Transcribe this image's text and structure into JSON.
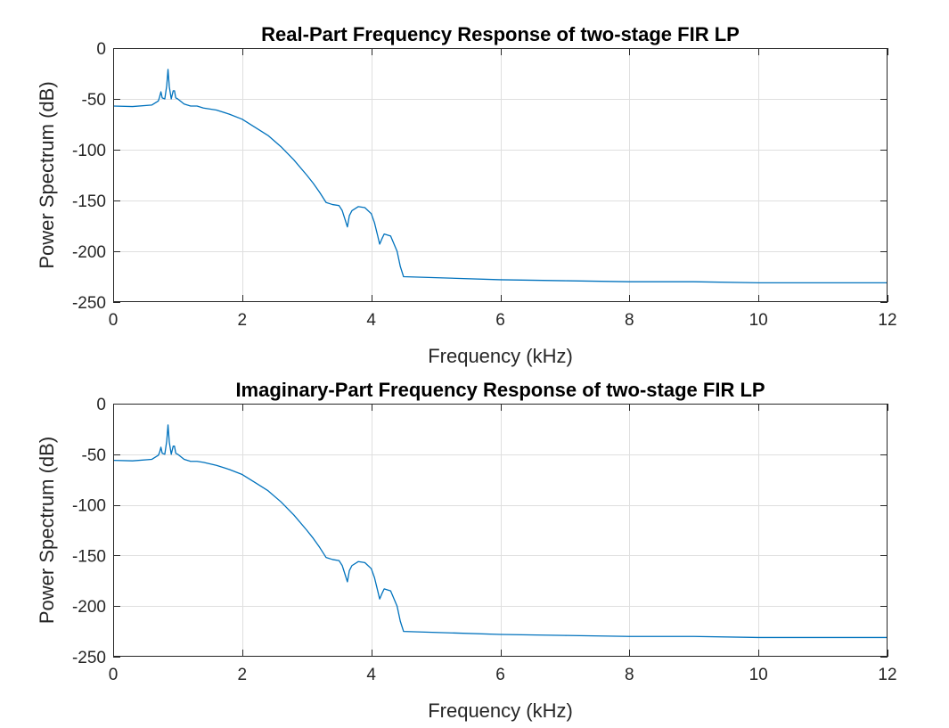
{
  "chart_data": [
    {
      "type": "line",
      "title": "Real-Part Frequency Response of two-stage FIR LP",
      "xlabel": "Frequency (kHz)",
      "ylabel": "Power Spectrum (dB)",
      "xlim": [
        0,
        12
      ],
      "ylim": [
        -250,
        0
      ],
      "xticks": [
        0,
        2,
        4,
        6,
        8,
        10,
        12
      ],
      "yticks": [
        -250,
        -200,
        -150,
        -100,
        -50,
        0
      ],
      "grid": true,
      "series": [
        {
          "color": "#0072BD",
          "x": [
            0,
            0.3,
            0.6,
            0.7,
            0.72,
            0.74,
            0.76,
            0.8,
            0.83,
            0.85,
            0.87,
            0.9,
            0.93,
            0.95,
            0.97,
            1.0,
            1.1,
            1.2,
            1.3,
            1.4,
            1.6,
            1.8,
            2.0,
            2.2,
            2.4,
            2.6,
            2.8,
            3.0,
            3.1,
            3.2,
            3.3,
            3.4,
            3.5,
            3.55,
            3.6,
            3.63,
            3.66,
            3.7,
            3.8,
            3.9,
            4.0,
            4.05,
            4.1,
            4.13,
            4.17,
            4.2,
            4.3,
            4.4,
            4.45,
            4.5,
            5,
            6,
            7,
            8,
            9,
            10,
            11,
            12
          ],
          "y": [
            -57,
            -57.5,
            -56,
            -52,
            -48,
            -43,
            -49,
            -50,
            -37,
            -21,
            -38,
            -50,
            -42,
            -42,
            -49,
            -50,
            -55,
            -57,
            -57,
            -59,
            -61,
            -65,
            -70,
            -78,
            -86,
            -97,
            -110,
            -125,
            -133,
            -142,
            -152,
            -154,
            -155,
            -160,
            -170,
            -176,
            -165,
            -160,
            -156,
            -157,
            -163,
            -172,
            -185,
            -193,
            -187,
            -183,
            -185,
            -200,
            -215,
            -225,
            -226,
            -228,
            -229,
            -230,
            -230,
            -231,
            -231,
            -231
          ]
        }
      ]
    },
    {
      "type": "line",
      "title": "Imaginary-Part Frequency Response of two-stage FIR LP",
      "xlabel": "Frequency (kHz)",
      "ylabel": "Power Spectrum (dB)",
      "xlim": [
        0,
        12
      ],
      "ylim": [
        -250,
        0
      ],
      "xticks": [
        0,
        2,
        4,
        6,
        8,
        10,
        12
      ],
      "yticks": [
        -250,
        -200,
        -150,
        -100,
        -50,
        0
      ],
      "grid": true,
      "series": [
        {
          "color": "#0072BD",
          "x": [
            0,
            0.3,
            0.6,
            0.7,
            0.72,
            0.74,
            0.76,
            0.8,
            0.83,
            0.85,
            0.87,
            0.9,
            0.93,
            0.95,
            0.97,
            1.0,
            1.1,
            1.2,
            1.3,
            1.4,
            1.6,
            1.8,
            2.0,
            2.2,
            2.4,
            2.6,
            2.8,
            3.0,
            3.1,
            3.2,
            3.3,
            3.4,
            3.5,
            3.55,
            3.6,
            3.63,
            3.66,
            3.7,
            3.8,
            3.9,
            4.0,
            4.05,
            4.1,
            4.13,
            4.17,
            4.2,
            4.3,
            4.4,
            4.45,
            4.5,
            5,
            6,
            7,
            8,
            9,
            10,
            11,
            12
          ],
          "y": [
            -56,
            -56.5,
            -55,
            -51,
            -48,
            -43,
            -49,
            -50,
            -37,
            -21,
            -38,
            -50,
            -42,
            -42,
            -49,
            -50,
            -55,
            -57,
            -57,
            -58,
            -61,
            -65,
            -70,
            -78,
            -86,
            -97,
            -110,
            -125,
            -133,
            -142,
            -152,
            -154,
            -155,
            -160,
            -170,
            -176,
            -165,
            -160,
            -156,
            -157,
            -163,
            -172,
            -185,
            -193,
            -187,
            -183,
            -185,
            -200,
            -215,
            -225,
            -226,
            -228,
            -229,
            -230,
            -230,
            -231,
            -231,
            -231
          ]
        }
      ]
    }
  ]
}
